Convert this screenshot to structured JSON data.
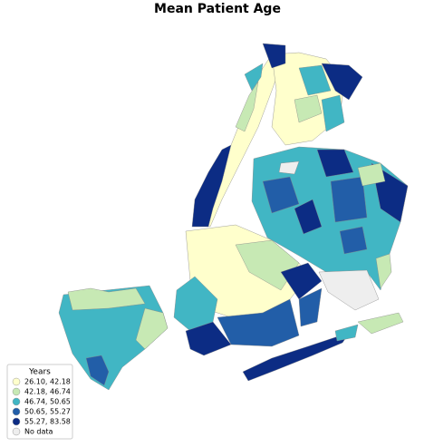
{
  "title": "Mean Patient Age",
  "legend": {
    "title": "Years",
    "items": [
      {
        "label": "26.10, 42.18",
        "color": "#ffffcc"
      },
      {
        "label": "42.18, 46.74",
        "color": "#c7e9b4"
      },
      {
        "label": "46.74, 50.65",
        "color": "#41b6c4"
      },
      {
        "label": "50.65, 55.27",
        "color": "#225ea8"
      },
      {
        "label": "55.27, 83.58",
        "color": "#0c2c84"
      },
      {
        "label": "No data",
        "color": "#eeeeee"
      }
    ]
  }
}
